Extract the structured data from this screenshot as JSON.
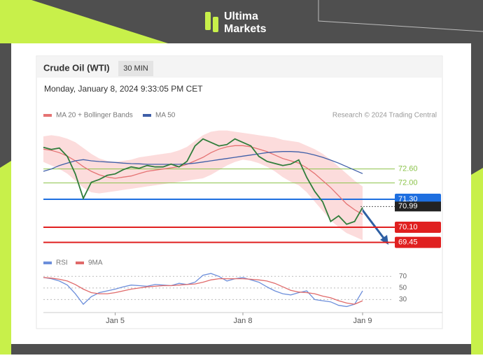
{
  "header": {
    "brand_line1": "Ultima",
    "brand_line2": "Markets"
  },
  "chart_data": {
    "type": "line",
    "title": "Crude Oil (WTI)",
    "timeframe": "30 MIN",
    "subtitle": "Monday, January 8, 2024 9:33:05 PM CET",
    "source": "Research © 2024 Trading Central",
    "x": [
      0,
      2,
      4,
      6,
      8,
      10,
      12,
      14,
      16,
      18,
      20,
      22,
      24,
      26,
      28,
      30,
      32,
      34,
      36,
      38,
      40,
      42,
      44,
      46,
      48,
      50,
      52,
      54,
      56,
      58,
      60,
      62,
      64,
      66,
      68,
      70,
      72,
      74,
      76,
      78,
      80
    ],
    "xlim": [
      0,
      100
    ],
    "xticks": [
      {
        "value": 18,
        "label": "Jan 5"
      },
      {
        "value": 50,
        "label": "Jan 8"
      },
      {
        "value": 80,
        "label": "Jan 9"
      }
    ],
    "ylim": [
      69.05,
      74.3
    ],
    "price": {
      "color": "#2f7d3a",
      "values": [
        73.53,
        73.44,
        73.5,
        73.14,
        72.39,
        71.34,
        72.03,
        72.15,
        72.33,
        72.39,
        72.57,
        72.69,
        72.63,
        72.75,
        72.69,
        72.69,
        72.81,
        72.69,
        72.93,
        73.59,
        73.89,
        73.74,
        73.59,
        73.65,
        73.89,
        73.74,
        73.59,
        73.14,
        72.93,
        72.84,
        72.75,
        72.81,
        72.99,
        72.24,
        71.64,
        71.19,
        70.35,
        70.59,
        70.23,
        70.35,
        70.95
      ]
    },
    "series": [
      {
        "name": "MA 20 + Bollinger Bands",
        "color": "#e57373",
        "band_color": "#fbd3d3",
        "values": [
          73.45,
          73.4,
          73.3,
          73.15,
          72.95,
          72.7,
          72.5,
          72.35,
          72.25,
          72.2,
          72.25,
          72.3,
          72.4,
          72.5,
          72.55,
          72.6,
          72.65,
          72.7,
          72.8,
          72.95,
          73.1,
          73.3,
          73.45,
          73.55,
          73.6,
          73.6,
          73.55,
          73.45,
          73.35,
          73.2,
          73.05,
          72.95,
          72.85,
          72.65,
          72.4,
          72.1,
          71.8,
          71.45,
          71.1,
          70.85,
          70.65
        ],
        "upper": [
          74.0,
          74.05,
          74.0,
          73.9,
          73.75,
          73.5,
          73.25,
          73.05,
          72.95,
          72.9,
          72.95,
          73.0,
          73.1,
          73.15,
          73.2,
          73.25,
          73.3,
          73.4,
          73.55,
          73.8,
          74.05,
          74.2,
          74.25,
          74.25,
          74.2,
          74.15,
          74.1,
          74.05,
          74.0,
          73.95,
          73.85,
          73.8,
          73.75,
          73.6,
          73.45,
          73.25,
          73.0,
          72.7,
          72.4,
          72.1,
          71.85
        ],
        "lower": [
          72.9,
          72.75,
          72.6,
          72.4,
          72.1,
          71.8,
          71.6,
          71.55,
          71.6,
          71.65,
          71.7,
          71.75,
          71.8,
          71.85,
          71.9,
          71.95,
          72.0,
          72.05,
          72.1,
          72.15,
          72.2,
          72.35,
          72.55,
          72.75,
          72.9,
          73.0,
          72.95,
          72.85,
          72.7,
          72.5,
          72.25,
          72.05,
          71.9,
          71.6,
          71.2,
          70.8,
          70.4,
          70.1,
          69.85,
          69.7,
          69.55
        ]
      },
      {
        "name": "MA 50",
        "color": "#3f5fa8",
        "values": [
          72.5,
          72.6,
          72.75,
          72.85,
          72.95,
          73.0,
          72.95,
          72.92,
          72.9,
          72.88,
          72.85,
          72.83,
          72.82,
          72.8,
          72.8,
          72.8,
          72.8,
          72.8,
          72.82,
          72.85,
          72.9,
          72.95,
          73.0,
          73.05,
          73.1,
          73.15,
          73.2,
          73.25,
          73.3,
          73.33,
          73.35,
          73.35,
          73.33,
          73.28,
          73.2,
          73.1,
          72.98,
          72.85,
          72.7,
          72.55,
          72.4
        ]
      }
    ],
    "levels": [
      {
        "value": 72.6,
        "label": "72.60",
        "color": "#8bc34a",
        "box": false
      },
      {
        "value": 72.0,
        "label": "72.00",
        "color": "#8bc34a",
        "box": false
      },
      {
        "value": 71.3,
        "label": "71.30",
        "color": "#1e6fe0",
        "box": true
      },
      {
        "value": 70.1,
        "label": "70.10",
        "color": "#e02020",
        "box": true
      },
      {
        "value": 69.45,
        "label": "69.45",
        "color": "#e02020",
        "box": true
      }
    ],
    "last_price": {
      "value": 70.99,
      "label": "70.99",
      "color": "#222222"
    },
    "rsi": {
      "ylim": [
        10,
        80
      ],
      "yticks": [
        70,
        50,
        30
      ],
      "series": [
        {
          "name": "RSI",
          "color": "#6d8fdb",
          "values": [
            68,
            66,
            62,
            55,
            40,
            22,
            35,
            42,
            45,
            48,
            52,
            55,
            54,
            53,
            56,
            55,
            54,
            58,
            56,
            60,
            72,
            75,
            70,
            62,
            66,
            68,
            64,
            60,
            52,
            45,
            40,
            38,
            42,
            45,
            30,
            28,
            26,
            20,
            18,
            22,
            45
          ]
        },
        {
          "name": "9MA",
          "color": "#e06a6a",
          "values": [
            68,
            67,
            65,
            62,
            56,
            48,
            42,
            40,
            40,
            42,
            45,
            48,
            50,
            52,
            53,
            54,
            54,
            55,
            56,
            57,
            60,
            64,
            66,
            66,
            66,
            66,
            65,
            64,
            62,
            58,
            52,
            46,
            43,
            42,
            40,
            36,
            33,
            28,
            24,
            22,
            28
          ]
        }
      ]
    }
  }
}
